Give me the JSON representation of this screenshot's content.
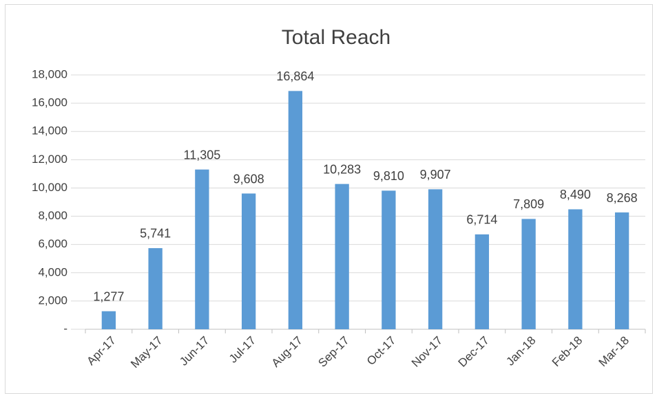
{
  "chart_data": {
    "type": "bar",
    "title": "Total Reach",
    "categories": [
      "Apr-17",
      "May-17",
      "Jun-17",
      "Jul-17",
      "Aug-17",
      "Sep-17",
      "Oct-17",
      "Nov-17",
      "Dec-17",
      "Jan-18",
      "Feb-18",
      "Mar-18"
    ],
    "values": [
      1277,
      5741,
      11305,
      9608,
      16864,
      10283,
      9810,
      9907,
      6714,
      7809,
      8490,
      8268
    ],
    "value_labels": [
      "1,277",
      "5,741",
      "11,305",
      "9,608",
      "16,864",
      "10,283",
      "9,810",
      "9,907",
      "6,714",
      "7,809",
      "8,490",
      "8,268"
    ],
    "color": "#5b9bd5",
    "ylim": [
      0,
      18000
    ],
    "yticks": [
      {
        "value": 0,
        "label": "-"
      },
      {
        "value": 2000,
        "label": "2,000"
      },
      {
        "value": 4000,
        "label": "4,000"
      },
      {
        "value": 6000,
        "label": "6,000"
      },
      {
        "value": 8000,
        "label": "8,000"
      },
      {
        "value": 10000,
        "label": "10,000"
      },
      {
        "value": 12000,
        "label": "12,000"
      },
      {
        "value": 14000,
        "label": "14,000"
      },
      {
        "value": 16000,
        "label": "16,000"
      },
      {
        "value": 18000,
        "label": "18,000"
      }
    ],
    "grid": true
  }
}
